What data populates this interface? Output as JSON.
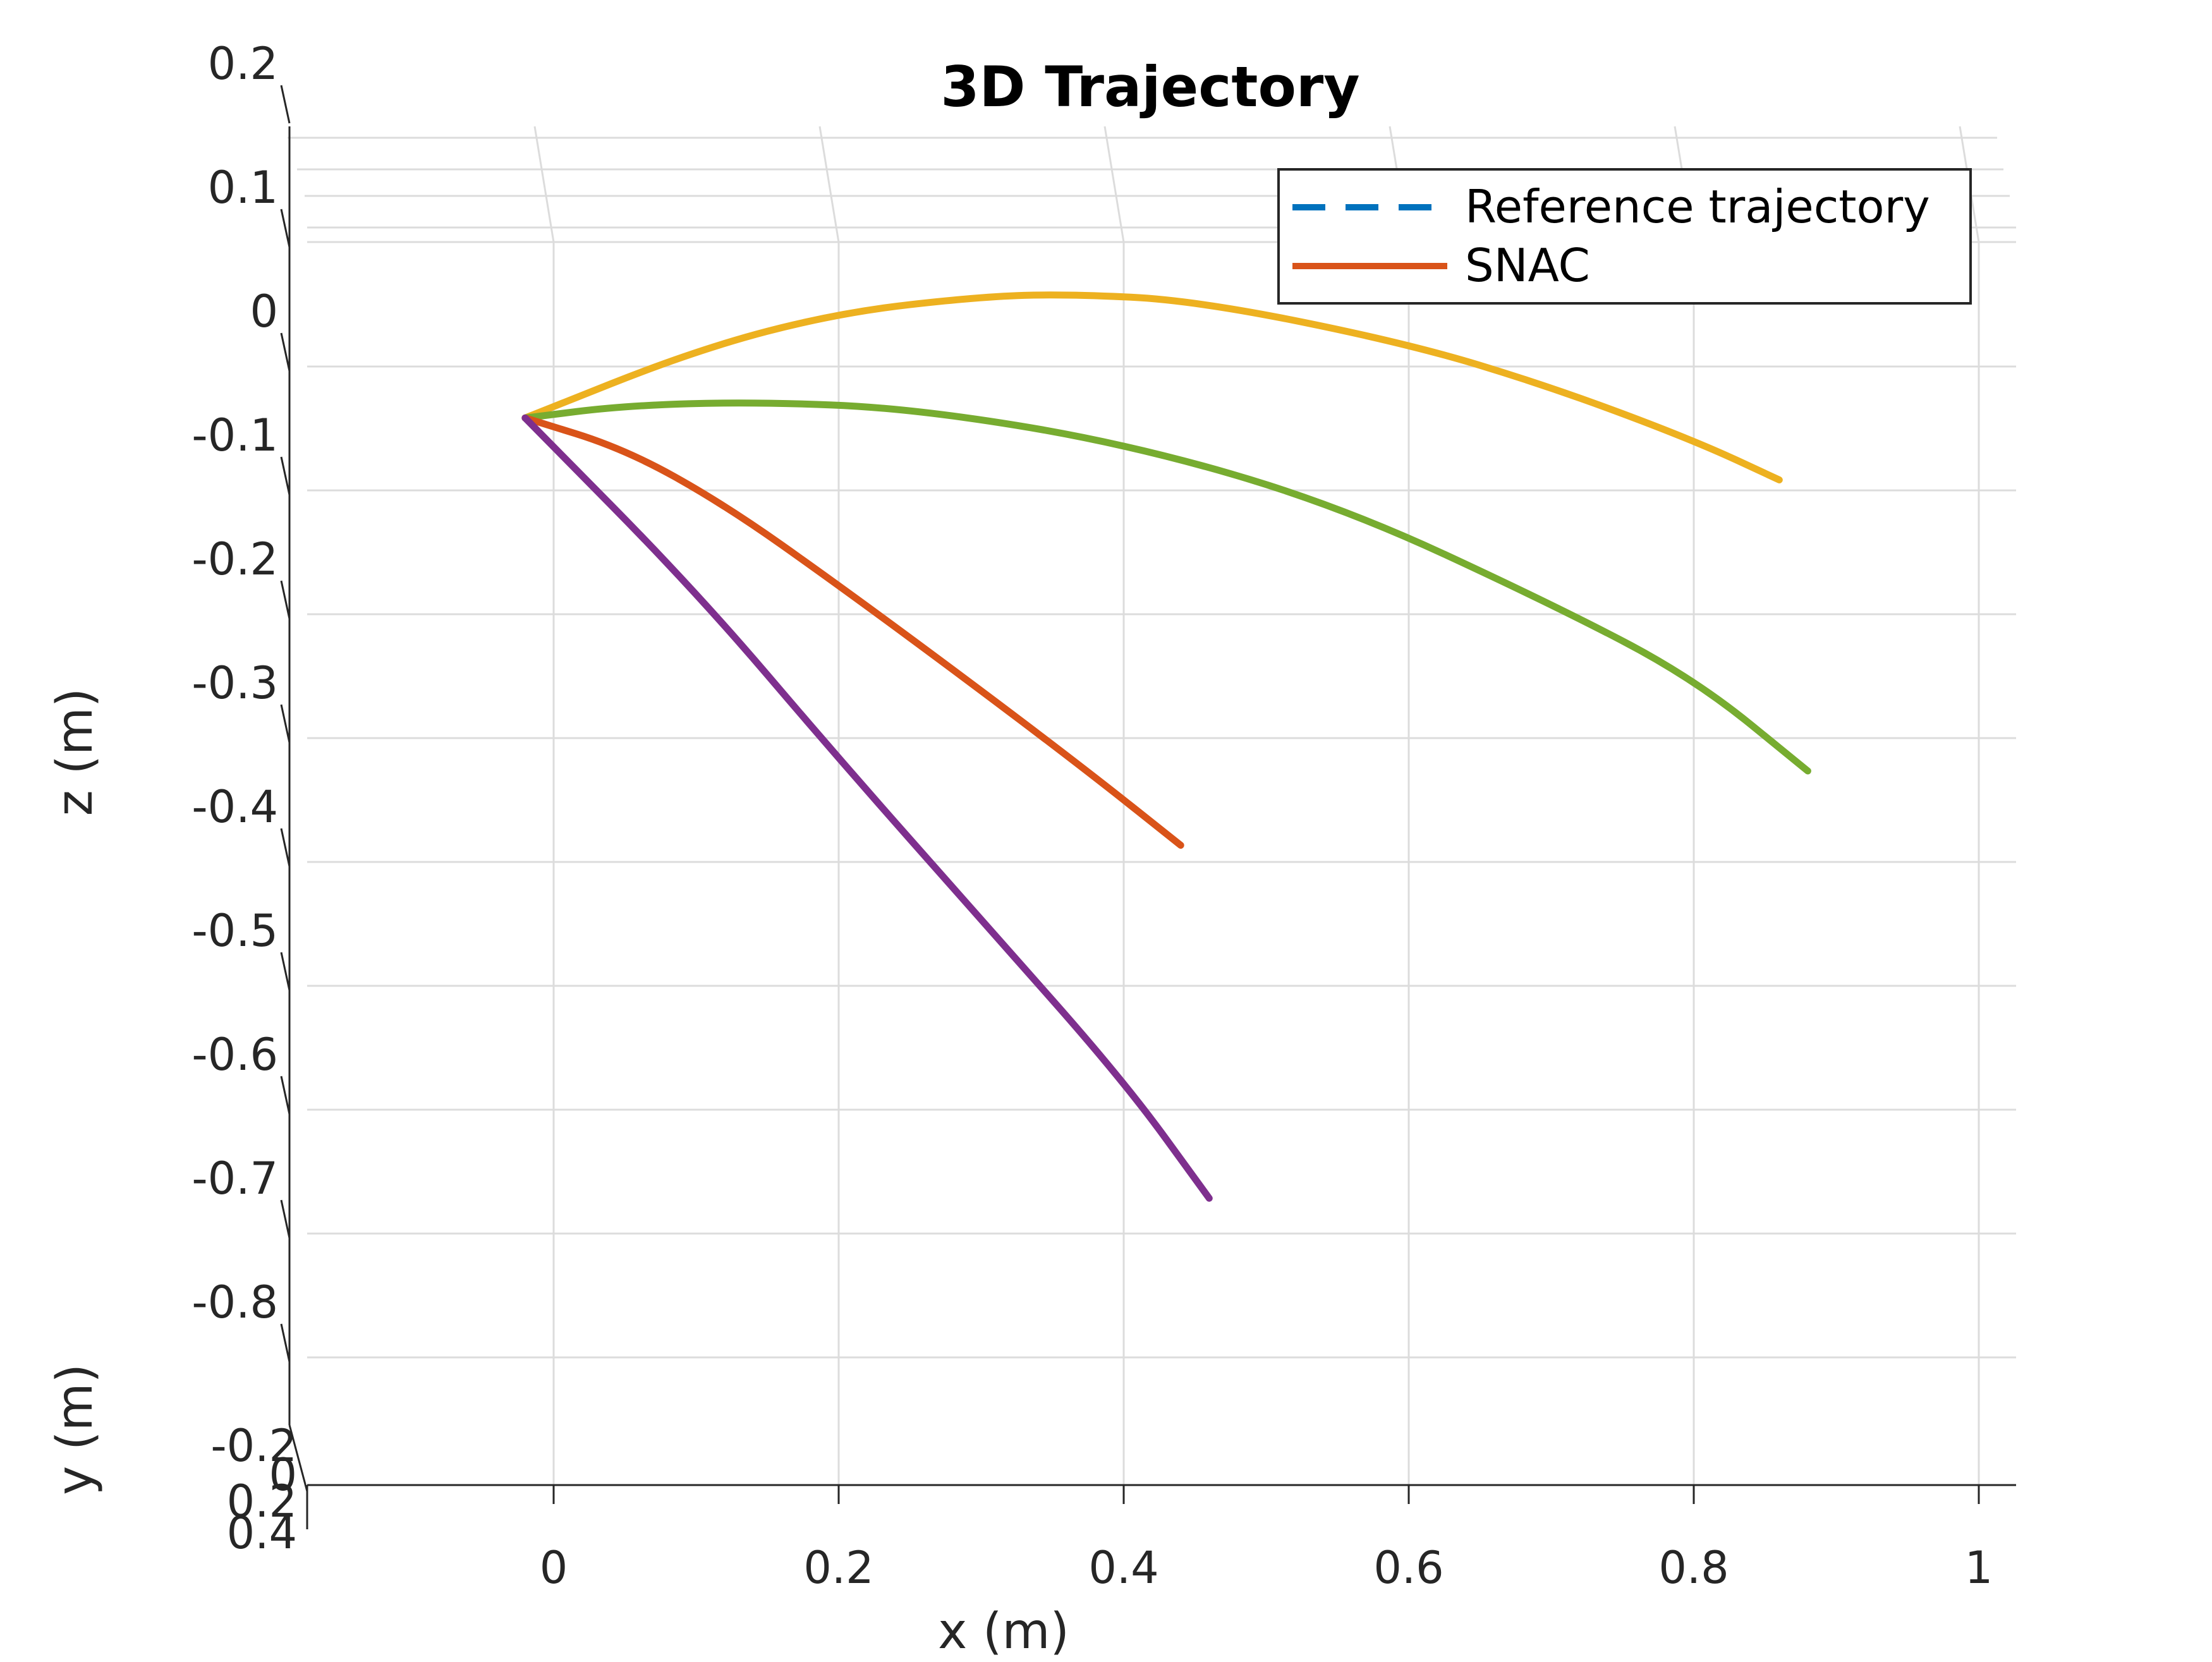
{
  "chart_data": {
    "type": "line",
    "title": "3D Trajectory",
    "xlabel": "x (m)",
    "ylabel": "y (m)",
    "zlabel": "z (m)",
    "xlim": [
      0,
      1
    ],
    "zlim": [
      -0.9,
      0.2
    ],
    "x_ticks": [
      0,
      0.2,
      0.4,
      0.6,
      0.8,
      1
    ],
    "x_tick_labels": [
      "0",
      "0.2",
      "0.4",
      "0.6",
      "0.8",
      "1"
    ],
    "z_ticks": [
      0.2,
      0.1,
      0,
      -0.1,
      -0.2,
      -0.3,
      -0.4,
      -0.5,
      -0.6,
      -0.7,
      -0.8
    ],
    "z_tick_labels": [
      "0.2",
      "0.1",
      "0",
      "-0.1",
      "-0.2",
      "-0.3",
      "-0.4",
      "-0.5",
      "-0.6",
      "-0.7",
      "-0.8"
    ],
    "y_tick_labels": [
      "-0.2",
      "0",
      "0.2",
      "0.4"
    ],
    "grid": true,
    "legend_position": "top-right",
    "legend": [
      {
        "label": "Reference trajectory",
        "color": "#0072BD",
        "style": "dashed"
      },
      {
        "label": "SNAC",
        "color": "#D95319",
        "style": "solid"
      }
    ],
    "series": [
      {
        "color": "#EDB120",
        "points": [
          [
            -0.02,
            -0.09
          ],
          [
            0.1,
            -0.035
          ],
          [
            0.2,
            -0.005
          ],
          [
            0.3,
            0.008
          ],
          [
            0.36,
            0.01
          ],
          [
            0.45,
            0.005
          ],
          [
            0.6,
            -0.03
          ],
          [
            0.7,
            -0.065
          ],
          [
            0.8,
            -0.108
          ],
          [
            0.86,
            -0.14
          ]
        ]
      },
      {
        "color": "#77AC30",
        "points": [
          [
            -0.02,
            -0.09
          ],
          [
            0.05,
            -0.08
          ],
          [
            0.14,
            -0.077
          ],
          [
            0.25,
            -0.082
          ],
          [
            0.4,
            -0.11
          ],
          [
            0.55,
            -0.16
          ],
          [
            0.7,
            -0.24
          ],
          [
            0.8,
            -0.3
          ],
          [
            0.88,
            -0.375
          ]
        ]
      },
      {
        "color": "#D95319",
        "points": [
          [
            -0.02,
            -0.09
          ],
          [
            0.05,
            -0.115
          ],
          [
            0.12,
            -0.16
          ],
          [
            0.2,
            -0.225
          ],
          [
            0.3,
            -0.31
          ],
          [
            0.38,
            -0.38
          ],
          [
            0.44,
            -0.435
          ]
        ]
      },
      {
        "color": "#7E2F8E",
        "points": [
          [
            -0.02,
            -0.09
          ],
          [
            0.1,
            -0.23
          ],
          [
            0.2,
            -0.365
          ],
          [
            0.3,
            -0.495
          ],
          [
            0.4,
            -0.625
          ],
          [
            0.46,
            -0.72
          ]
        ]
      }
    ]
  }
}
